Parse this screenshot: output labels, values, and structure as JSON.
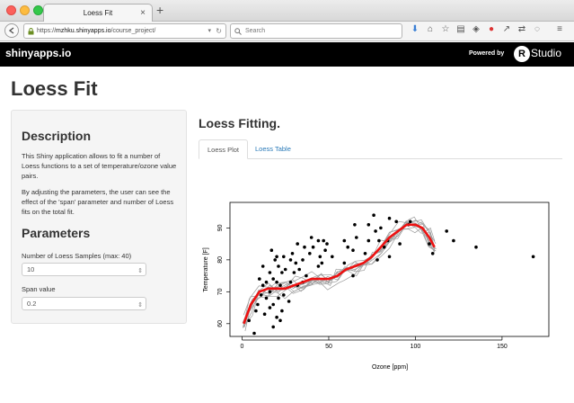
{
  "browser": {
    "tab_title": "Loess Fit",
    "tab_close": "×",
    "new_tab": "+",
    "url_scheme": "https://",
    "url_host": "mzhku.shinyapps.io",
    "url_path": "/course_project/",
    "search_placeholder": "Search"
  },
  "navbar": {
    "brand": "shinyapps.io",
    "powered_by": "Powered by",
    "logo_letter": "R",
    "studio": "Studio"
  },
  "page": {
    "title": "Loess Fit"
  },
  "sidebar": {
    "description_heading": "Description",
    "description_p1": "This Shiny application allows to fit a number of Loess functions to a set of temperature/ozone value pairs.",
    "description_p2": "By adjusting the parameters, the user can see the effect of the 'span' parameter and number of Loess fits on the total fit.",
    "parameters_heading": "Parameters",
    "samples_label": "Number of Loess Samples (max: 40)",
    "samples_value": "10",
    "span_label": "Span value",
    "span_value": "0.2"
  },
  "main": {
    "heading": "Loess Fitting.",
    "tabs": [
      {
        "label": "Loess Plot",
        "active": true
      },
      {
        "label": "Loess Table",
        "active": false
      }
    ]
  },
  "chart_data": {
    "type": "scatter",
    "xlabel": "Ozone [ppm]",
    "ylabel": "Temperature [F]",
    "xlim": [
      -7,
      177
    ],
    "ylim": [
      56,
      98
    ],
    "xticks": [
      0,
      50,
      100,
      150
    ],
    "yticks": [
      60,
      70,
      80,
      90
    ],
    "points": [
      [
        4,
        61
      ],
      [
        7,
        57
      ],
      [
        8,
        64
      ],
      [
        9,
        66
      ],
      [
        10,
        74
      ],
      [
        11,
        69
      ],
      [
        12,
        72
      ],
      [
        12,
        78
      ],
      [
        13,
        63
      ],
      [
        14,
        68
      ],
      [
        14,
        73
      ],
      [
        16,
        65
      ],
      [
        16,
        70
      ],
      [
        16,
        76
      ],
      [
        17,
        83
      ],
      [
        18,
        59
      ],
      [
        18,
        74
      ],
      [
        18,
        66
      ],
      [
        19,
        80
      ],
      [
        20,
        62
      ],
      [
        20,
        73
      ],
      [
        20,
        81
      ],
      [
        21,
        68
      ],
      [
        21,
        78
      ],
      [
        22,
        72
      ],
      [
        22,
        61
      ],
      [
        23,
        76
      ],
      [
        23,
        64
      ],
      [
        24,
        69
      ],
      [
        24,
        81
      ],
      [
        25,
        77
      ],
      [
        27,
        67
      ],
      [
        28,
        80
      ],
      [
        28,
        73
      ],
      [
        29,
        82
      ],
      [
        30,
        76
      ],
      [
        31,
        79
      ],
      [
        32,
        72
      ],
      [
        32,
        85
      ],
      [
        33,
        77
      ],
      [
        35,
        80
      ],
      [
        35,
        73
      ],
      [
        36,
        84
      ],
      [
        37,
        75
      ],
      [
        39,
        82
      ],
      [
        40,
        87
      ],
      [
        41,
        84
      ],
      [
        44,
        78
      ],
      [
        44,
        86
      ],
      [
        45,
        81
      ],
      [
        46,
        79
      ],
      [
        47,
        86
      ],
      [
        48,
        83
      ],
      [
        49,
        85
      ],
      [
        52,
        81
      ],
      [
        59,
        79
      ],
      [
        59,
        86
      ],
      [
        61,
        84
      ],
      [
        64,
        83
      ],
      [
        64,
        75
      ],
      [
        65,
        91
      ],
      [
        66,
        87
      ],
      [
        71,
        82
      ],
      [
        73,
        91
      ],
      [
        73,
        86
      ],
      [
        76,
        94
      ],
      [
        77,
        89
      ],
      [
        78,
        80
      ],
      [
        79,
        86
      ],
      [
        80,
        90
      ],
      [
        82,
        84
      ],
      [
        84,
        86
      ],
      [
        85,
        93
      ],
      [
        85,
        81
      ],
      [
        89,
        92
      ],
      [
        91,
        85
      ],
      [
        96,
        91
      ],
      [
        97,
        92
      ],
      [
        108,
        85
      ],
      [
        110,
        82
      ],
      [
        118,
        89
      ],
      [
        122,
        86
      ],
      [
        135,
        84
      ],
      [
        168,
        81
      ]
    ],
    "fit": [
      [
        1,
        60
      ],
      [
        5,
        66
      ],
      [
        10,
        70
      ],
      [
        15,
        71
      ],
      [
        20,
        71
      ],
      [
        25,
        71
      ],
      [
        30,
        72
      ],
      [
        35,
        73
      ],
      [
        40,
        74
      ],
      [
        45,
        74
      ],
      [
        50,
        74
      ],
      [
        55,
        75
      ],
      [
        60,
        77
      ],
      [
        65,
        78
      ],
      [
        70,
        79
      ],
      [
        75,
        81
      ],
      [
        80,
        84
      ],
      [
        85,
        87
      ],
      [
        90,
        89
      ],
      [
        95,
        91
      ],
      [
        100,
        91
      ],
      [
        104,
        90
      ],
      [
        108,
        87
      ],
      [
        111,
        84
      ]
    ],
    "sample_fits": 10
  }
}
